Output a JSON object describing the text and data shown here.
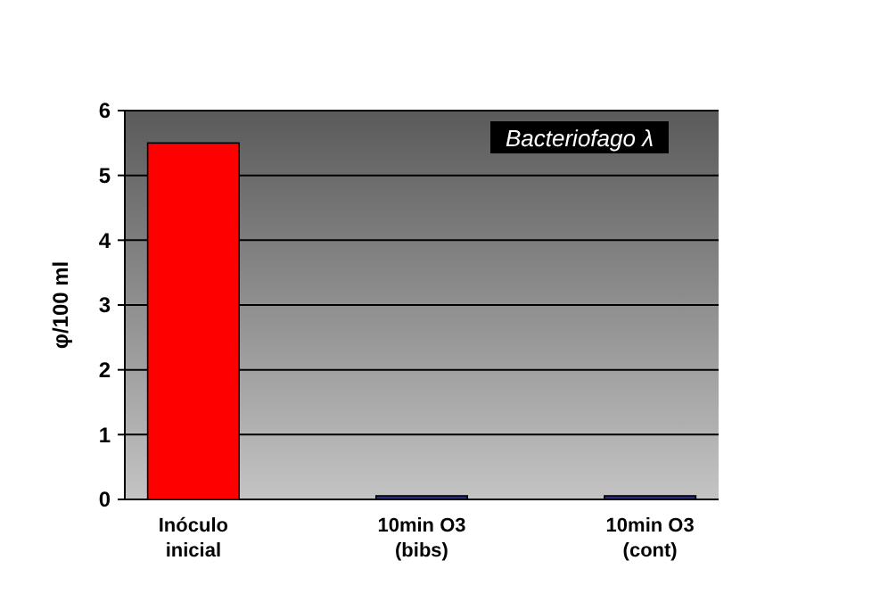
{
  "chart_data": {
    "type": "bar",
    "title": "Bacteriofago λ",
    "ylabel": "φ/100 ml",
    "categories": [
      "Inóculo\ninicial",
      "10min O3\n(bibs)",
      "10min O3\n(cont)"
    ],
    "values": [
      5.5,
      0,
      0
    ],
    "colors": [
      "#ff0000",
      "#2b2b80",
      "#2b2b80"
    ],
    "ylim": [
      0,
      6
    ],
    "yticks": [
      0,
      1,
      2,
      3,
      4,
      5,
      6
    ],
    "grid": "y"
  }
}
